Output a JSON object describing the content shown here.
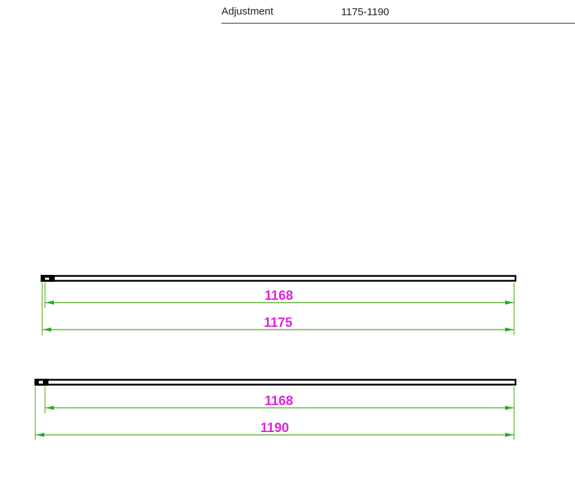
{
  "spec": {
    "label": "Adjustment",
    "value": "1175-1190"
  },
  "drawings": [
    {
      "inner_dimension": "1168",
      "outer_dimension": "1175"
    },
    {
      "inner_dimension": "1168",
      "outer_dimension": "1190"
    }
  ],
  "colors": {
    "dimension_line": "#5cb83a",
    "arrow": "#2aa82a",
    "dimension_text": "#e020e0",
    "bar": "#000000"
  }
}
